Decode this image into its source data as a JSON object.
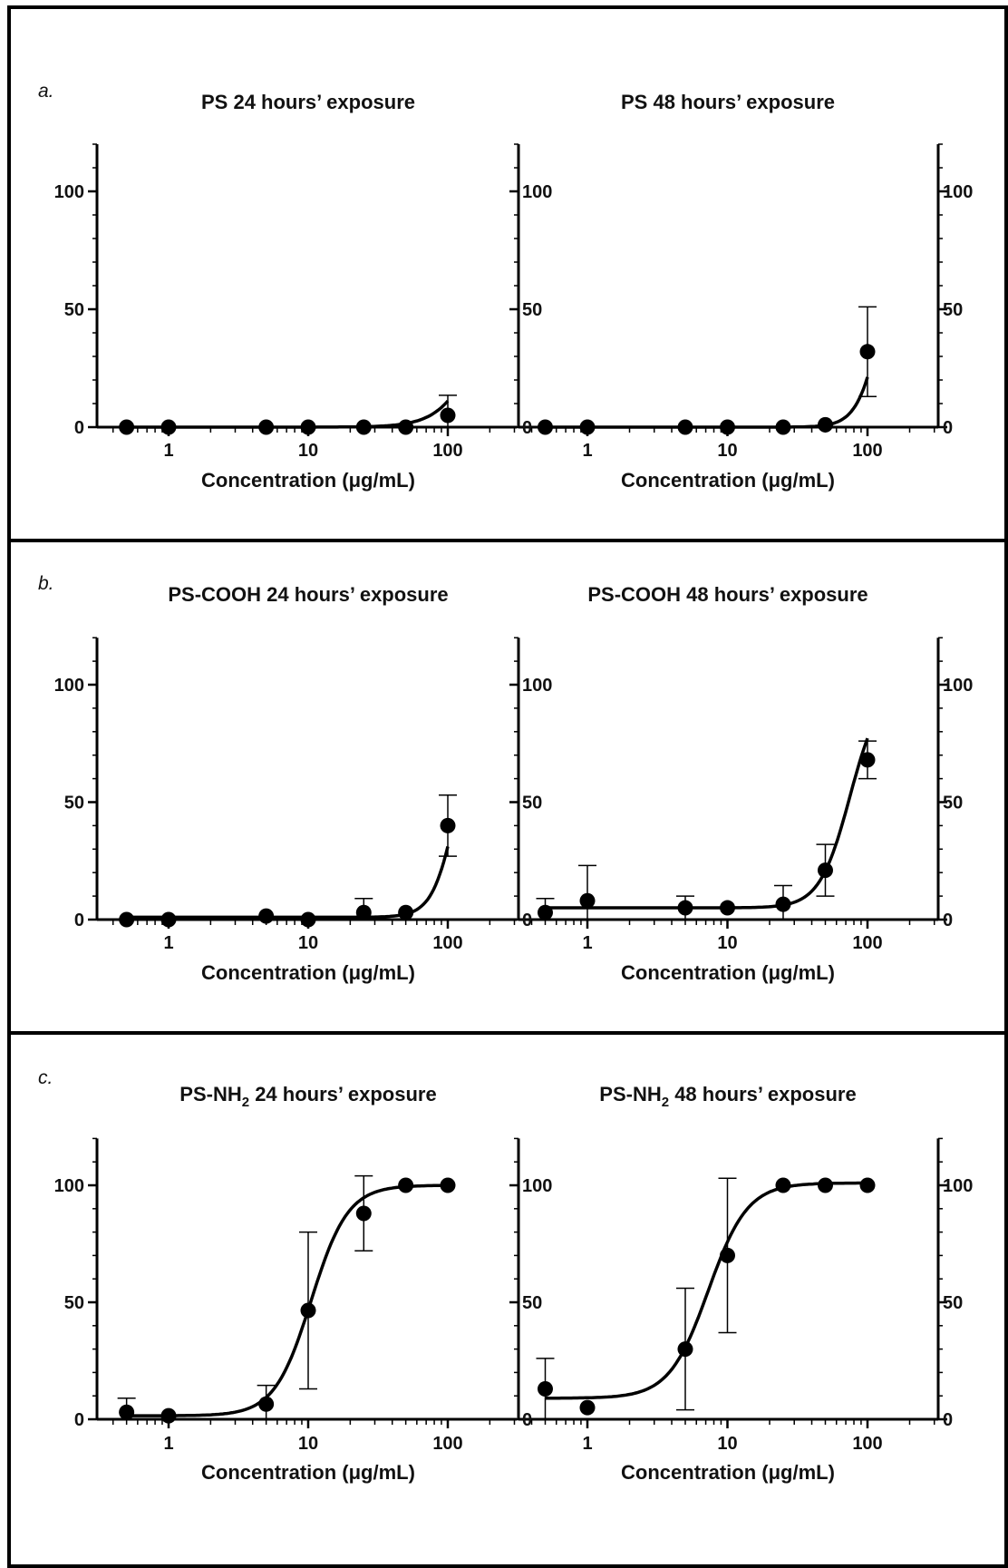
{
  "panels": [
    {
      "letter": "a."
    },
    {
      "letter": "b."
    },
    {
      "letter": "c."
    }
  ],
  "chart_data": [
    {
      "type": "scatter",
      "title": "PS 24 hours’ exposure",
      "xlabel": "Concentration (μg/mL)",
      "ylabel": "",
      "xscale": "log",
      "x_ticks": [
        "1",
        "10",
        "100"
      ],
      "y_ticks": [
        "0",
        "50",
        "100"
      ],
      "ylim": [
        0,
        120
      ],
      "series": [
        {
          "x": [
            0.5,
            1,
            5,
            10,
            25,
            50,
            100
          ],
          "y": [
            0,
            0,
            0,
            0,
            0,
            0,
            5
          ],
          "err": [
            0,
            0,
            0,
            0,
            0,
            0,
            8.5
          ]
        }
      ],
      "fit": {
        "bottom": 0,
        "top": 100,
        "ec50": 200,
        "hill": 3
      }
    },
    {
      "type": "scatter",
      "title": "PS 48 hours’ exposure",
      "xlabel": "Concentration (μg/mL)",
      "ylabel": "",
      "xscale": "log",
      "x_ticks": [
        "1",
        "10",
        "100"
      ],
      "y_ticks": [
        "0",
        "50",
        "100"
      ],
      "ylim": [
        0,
        120
      ],
      "series": [
        {
          "x": [
            0.5,
            1,
            5,
            10,
            25,
            50,
            100
          ],
          "y": [
            0,
            0,
            0,
            0,
            0,
            1,
            32
          ],
          "err": [
            0,
            0,
            0,
            0,
            0,
            0,
            19
          ]
        }
      ],
      "fit": {
        "bottom": 0,
        "top": 100,
        "ec50": 130,
        "hill": 5
      }
    },
    {
      "type": "scatter",
      "title": "PS-COOH 24 hours’ exposure",
      "xlabel": "Concentration (μg/mL)",
      "ylabel": "",
      "xscale": "log",
      "x_ticks": [
        "1",
        "10",
        "100"
      ],
      "y_ticks": [
        "0",
        "50",
        "100"
      ],
      "ylim": [
        0,
        120
      ],
      "series": [
        {
          "x": [
            0.5,
            1,
            5,
            10,
            25,
            50,
            100
          ],
          "y": [
            0,
            0,
            1.5,
            0,
            3,
            3,
            40
          ],
          "err": [
            0,
            0,
            0,
            0,
            6,
            0,
            13
          ]
        }
      ],
      "fit": {
        "bottom": 1,
        "top": 100,
        "ec50": 118,
        "hill": 5
      }
    },
    {
      "type": "scatter",
      "title": "PS-COOH 48 hours’ exposure",
      "xlabel": "Concentration (μg/mL)",
      "ylabel": "",
      "xscale": "log",
      "x_ticks": [
        "1",
        "10",
        "100"
      ],
      "y_ticks": [
        "0",
        "50",
        "100"
      ],
      "ylim": [
        0,
        120
      ],
      "series": [
        {
          "x": [
            0.5,
            1,
            5,
            10,
            25,
            50,
            100
          ],
          "y": [
            3,
            8,
            5,
            5,
            6.5,
            21,
            68
          ],
          "err": [
            6,
            15,
            5,
            0,
            8,
            11,
            8
          ]
        }
      ],
      "fit": {
        "bottom": 5,
        "top": 100,
        "ec50": 75,
        "hill": 4
      }
    },
    {
      "type": "scatter",
      "title": "PS-NH",
      "title_sub": "2",
      "title_rest": " 24 hours’ exposure",
      "xlabel": "Concentration (μg/mL)",
      "ylabel": "",
      "xscale": "log",
      "x_ticks": [
        "1",
        "10",
        "100"
      ],
      "y_ticks": [
        "0",
        "50",
        "100"
      ],
      "ylim": [
        0,
        120
      ],
      "series": [
        {
          "x": [
            0.5,
            1,
            5,
            10,
            25,
            50,
            100
          ],
          "y": [
            3,
            1.5,
            6.5,
            46.5,
            88,
            100,
            100
          ],
          "err": [
            6,
            0,
            8,
            33.5,
            16,
            0,
            0
          ]
        }
      ],
      "fit": {
        "bottom": 1.5,
        "top": 100,
        "ec50": 10.5,
        "hill": 3.3
      }
    },
    {
      "type": "scatter",
      "title": "PS-NH",
      "title_sub": "2",
      "title_rest": " 48 hours’ exposure",
      "xlabel": "Concentration (μg/mL)",
      "ylabel": "",
      "xscale": "log",
      "x_ticks": [
        "1",
        "10",
        "100"
      ],
      "y_ticks": [
        "0",
        "50",
        "100"
      ],
      "ylim": [
        0,
        120
      ],
      "series": [
        {
          "x": [
            0.5,
            1,
            5,
            10,
            25,
            50,
            100
          ],
          "y": [
            13,
            5,
            30,
            70,
            100,
            100,
            100
          ],
          "err": [
            13,
            0,
            26,
            33,
            0,
            0,
            0
          ]
        }
      ],
      "fit": {
        "bottom": 9,
        "top": 101,
        "ec50": 7.3,
        "hill": 3.1
      }
    }
  ]
}
